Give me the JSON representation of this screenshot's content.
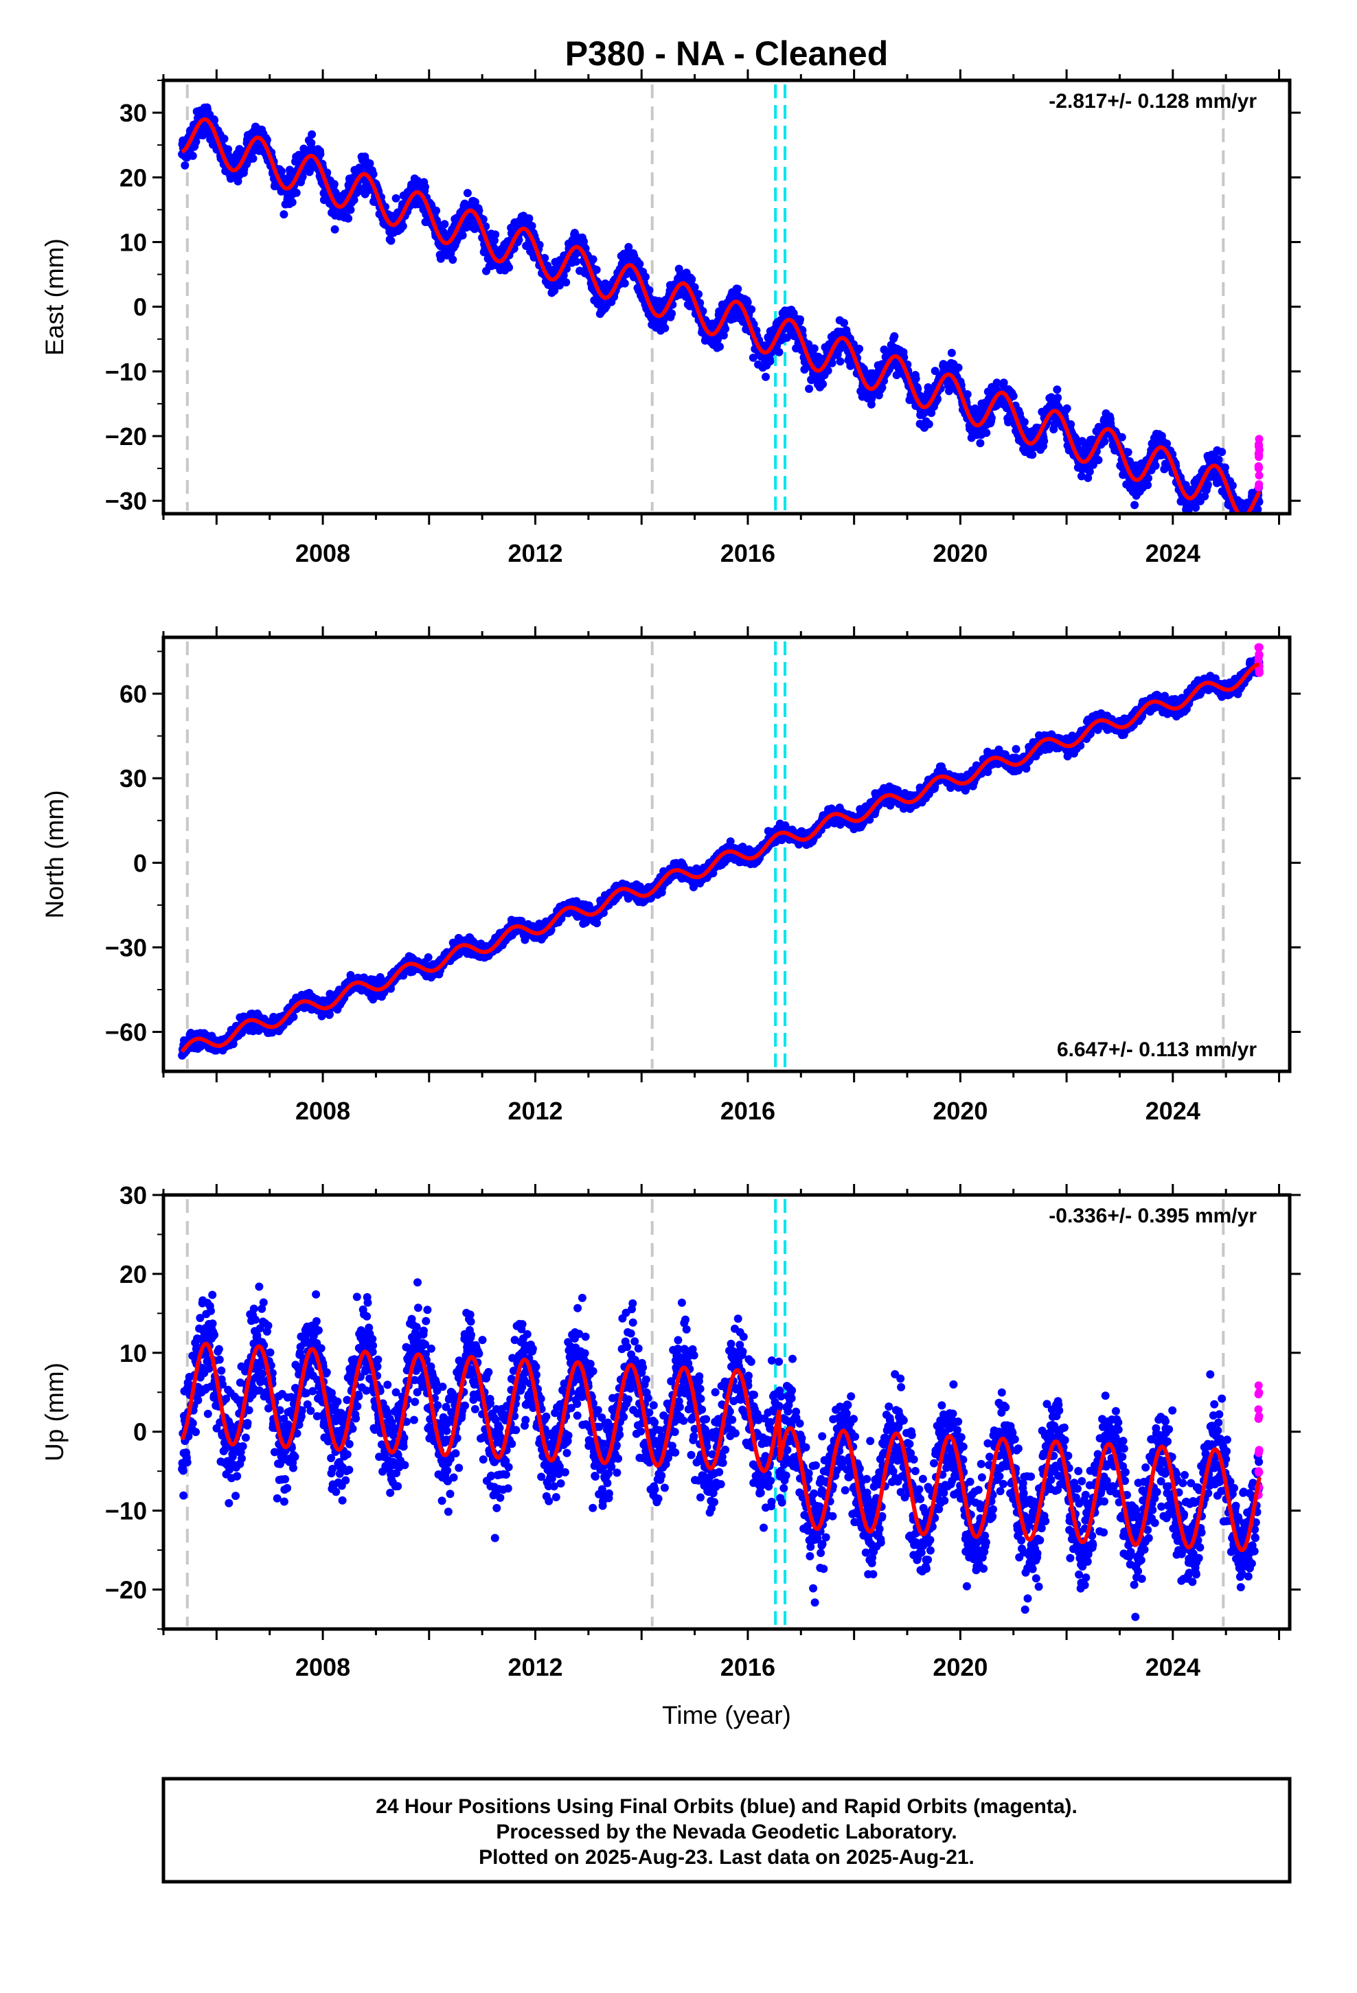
{
  "title": "P380  - NA - Cleaned",
  "colors": {
    "final_orbits": "#0000ff",
    "rapid_orbits": "#ff00ff",
    "model": "#ff0000",
    "equipment_change": "#c8c8c8",
    "earthquake": "#00e5ee"
  },
  "chart_data": [
    {
      "type": "scatter",
      "ylabel": "East (mm)",
      "xlim": [
        2005.0,
        2026.2
      ],
      "ylim": [
        -32,
        35
      ],
      "yticks": [
        "30",
        "20",
        "10",
        "0",
        "−10",
        "−20",
        "−30"
      ],
      "ytick_values": [
        30,
        20,
        10,
        0,
        -10,
        -20,
        -30
      ],
      "xticks": [
        "2008",
        "2012",
        "2016",
        "2020",
        "2024"
      ],
      "xtick_values": [
        2008,
        2012,
        2016,
        2020,
        2024
      ],
      "rate_label": "-2.817+/- 0.128 mm/yr",
      "rate_position": "top-right",
      "model": {
        "start": 2005.35,
        "offset": 27.0,
        "rate_mm_per_yr": -2.817,
        "seasonal_amplitude": 3.2,
        "seasonal_phase": 0.55
      },
      "data_range": [
        2005.35,
        2025.63
      ],
      "scatter_sd": 1.2,
      "rapid_range": [
        2025.4,
        2025.63
      ],
      "rapid_values": [
        -21,
        -23,
        -25,
        -27
      ]
    },
    {
      "type": "scatter",
      "ylabel": "North (mm)",
      "xlim": [
        2005.0,
        2026.2
      ],
      "ylim": [
        -74,
        80
      ],
      "yticks": [
        "60",
        "30",
        "0",
        "−30",
        "−60"
      ],
      "ytick_values": [
        60,
        30,
        0,
        -30,
        -60
      ],
      "xticks": [
        "2008",
        "2012",
        "2016",
        "2020",
        "2024"
      ],
      "xtick_values": [
        2008,
        2012,
        2016,
        2020,
        2024
      ],
      "rate_label": "6.647+/- 0.113 mm/yr",
      "rate_position": "bottom-right",
      "model": {
        "start": 2005.35,
        "offset": -67.0,
        "rate_mm_per_yr": 6.647,
        "seasonal_amplitude": 2.7,
        "seasonal_phase": 0.35
      },
      "data_range": [
        2005.35,
        2025.63
      ],
      "scatter_sd": 1.3,
      "rapid_range": [
        2025.4,
        2025.63
      ],
      "rapid_values": [
        70,
        73,
        76,
        68
      ]
    },
    {
      "type": "scatter",
      "ylabel": "Up (mm)",
      "xlabel": "Time (year)",
      "xlim": [
        2005.0,
        2026.2
      ],
      "ylim": [
        -25,
        30
      ],
      "yticks": [
        "30",
        "20",
        "10",
        "0",
        "−10",
        "−20"
      ],
      "ytick_values": [
        30,
        20,
        10,
        0,
        -10,
        -20
      ],
      "xticks": [
        "2008",
        "2012",
        "2016",
        "2020",
        "2024"
      ],
      "xtick_values": [
        2008,
        2012,
        2016,
        2020,
        2024
      ],
      "rate_label": "-0.336+/- 0.395 mm/yr",
      "rate_position": "top-right",
      "model": {
        "start": 2005.35,
        "offset": 5.0,
        "rate_mm_per_yr": -0.336,
        "seasonal_amplitude": 6.3,
        "seasonal_phase": 0.55,
        "step_at": 2016.6,
        "step_size": -7.0
      },
      "data_range": [
        2005.35,
        2025.63
      ],
      "scatter_sd": 3.2,
      "rapid_range": [
        2025.4,
        2025.63
      ],
      "rapid_values": [
        5,
        2,
        -2,
        -5,
        -8
      ]
    }
  ],
  "equipment_changes": [
    2005.45,
    2014.2,
    2024.95
  ],
  "earthquakes": [
    2016.52,
    2016.7
  ],
  "footer": {
    "line1": "24 Hour Positions Using Final Orbits (blue) and Rapid Orbits (magenta).",
    "line2": "Processed by the Nevada Geodetic Laboratory.",
    "line3": "Plotted on 2025-Aug-23. Last data on 2025-Aug-21."
  }
}
